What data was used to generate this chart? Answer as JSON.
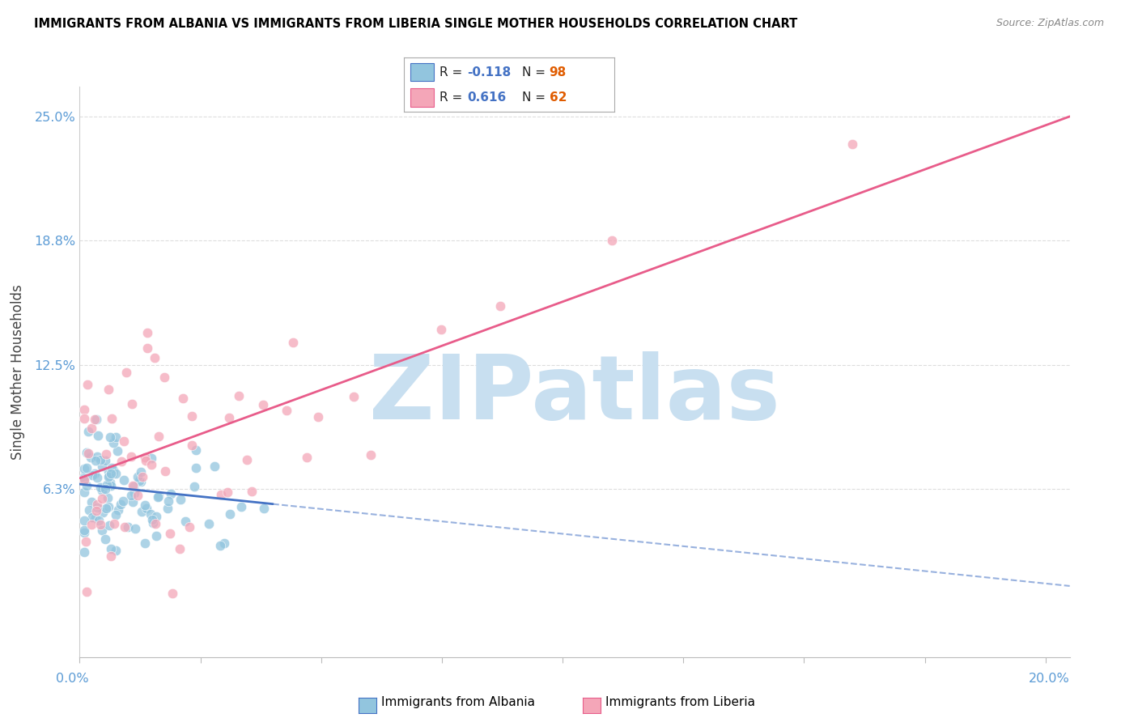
{
  "title": "IMMIGRANTS FROM ALBANIA VS IMMIGRANTS FROM LIBERIA SINGLE MOTHER HOUSEHOLDS CORRELATION CHART",
  "source": "Source: ZipAtlas.com",
  "ylabel": "Single Mother Households",
  "xlim": [
    0.0,
    0.205
  ],
  "ylim": [
    -0.022,
    0.265
  ],
  "ytick_vals": [
    0.0625,
    0.125,
    0.1875,
    0.25
  ],
  "ytick_labels": [
    "6.3%",
    "12.5%",
    "18.8%",
    "25.0%"
  ],
  "xtick_label_left": "0.0%",
  "xtick_label_right": "20.0%",
  "color_albania": "#92c5de",
  "color_liberia": "#f4a6b8",
  "color_albania_line": "#4472c4",
  "color_liberia_line": "#e85c8a",
  "color_grid": "#dddddd",
  "color_tick_label": "#5b9bd5",
  "watermark_text": "ZIPatlas",
  "watermark_color": "#c8dff0",
  "legend_r1_val": "-0.118",
  "legend_n1_val": "98",
  "legend_r2_val": "0.616",
  "legend_n2_val": "62",
  "alb_trend_solid_end": 0.04,
  "lib_trend_x_start": 0.0,
  "lib_trend_x_end": 0.205
}
